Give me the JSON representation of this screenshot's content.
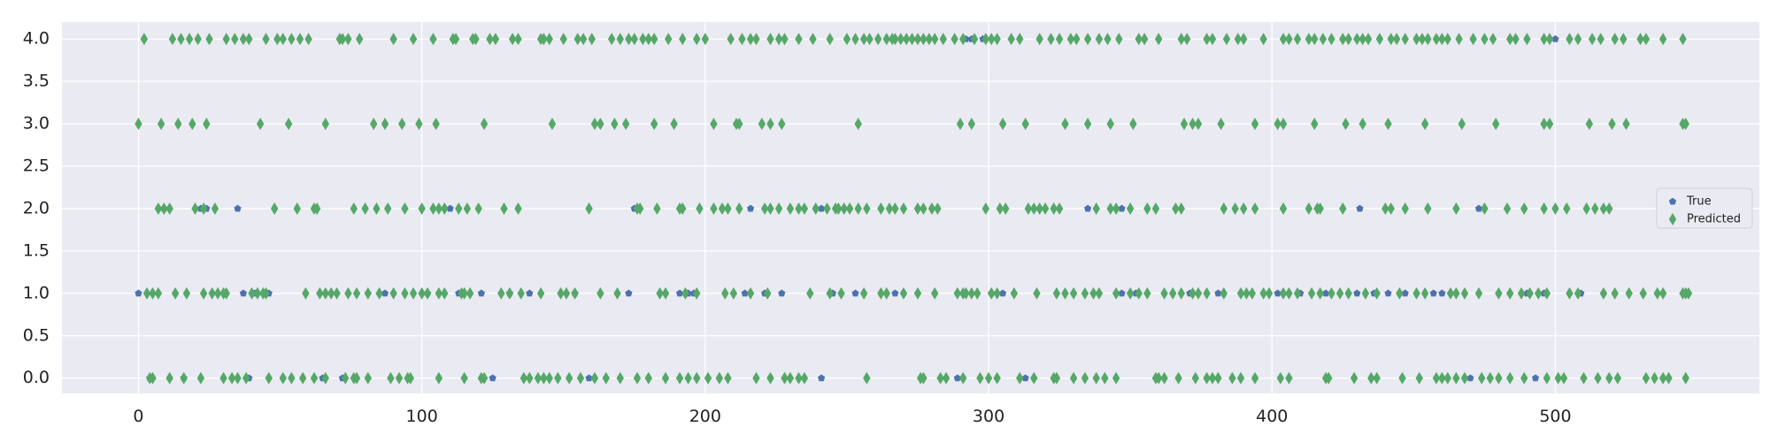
{
  "chart_data": {
    "type": "scatter",
    "title": "",
    "xlabel": "",
    "ylabel": "",
    "xlim": [
      -27,
      572
    ],
    "ylim": [
      -0.18,
      4.2
    ],
    "xticks": [
      0,
      100,
      200,
      300,
      400,
      500
    ],
    "yticks": [
      0.0,
      0.5,
      1.0,
      1.5,
      2.0,
      2.5,
      3.0,
      3.5,
      4.0
    ],
    "xtick_labels": [
      "0",
      "100",
      "200",
      "300",
      "400",
      "500"
    ],
    "ytick_labels": [
      "0.0",
      "0.5",
      "1.0",
      "1.5",
      "2.0",
      "2.5",
      "3.0",
      "3.5",
      "4.0"
    ],
    "grid": true,
    "legend_position": "center-right",
    "background_color": "#eaeaf2",
    "grid_color": "#ffffff",
    "series": [
      {
        "name": "True",
        "marker": "pentagon",
        "color": "#4c72b0",
        "points": [
          [
            0,
            1
          ],
          [
            4,
            0
          ],
          [
            9,
            2
          ],
          [
            16,
            0
          ],
          [
            22,
            2
          ],
          [
            24,
            2
          ],
          [
            35,
            2
          ],
          [
            37,
            1
          ],
          [
            39,
            0
          ],
          [
            41,
            1
          ],
          [
            46,
            1
          ],
          [
            65,
            0
          ],
          [
            72,
            0
          ],
          [
            87,
            1
          ],
          [
            102,
            1
          ],
          [
            110,
            2
          ],
          [
            113,
            1
          ],
          [
            114,
            1
          ],
          [
            121,
            1
          ],
          [
            125,
            0
          ],
          [
            131,
            1
          ],
          [
            138,
            1
          ],
          [
            154,
            1
          ],
          [
            159,
            0
          ],
          [
            173,
            1
          ],
          [
            175,
            2
          ],
          [
            191,
            1
          ],
          [
            194,
            1
          ],
          [
            196,
            1
          ],
          [
            214,
            1
          ],
          [
            216,
            2
          ],
          [
            221,
            1
          ],
          [
            227,
            1
          ],
          [
            241,
            0
          ],
          [
            241,
            2
          ],
          [
            245,
            1
          ],
          [
            253,
            1
          ],
          [
            267,
            1
          ],
          [
            289,
            0
          ],
          [
            292,
            4
          ],
          [
            294,
            4
          ],
          [
            298,
            4
          ],
          [
            301,
            1
          ],
          [
            305,
            1
          ],
          [
            313,
            0
          ],
          [
            335,
            2
          ],
          [
            347,
            1
          ],
          [
            347,
            2
          ],
          [
            352,
            1
          ],
          [
            371,
            1
          ],
          [
            381,
            1
          ],
          [
            402,
            1
          ],
          [
            410,
            1
          ],
          [
            419,
            1
          ],
          [
            430,
            1
          ],
          [
            431,
            2
          ],
          [
            436,
            1
          ],
          [
            441,
            1
          ],
          [
            447,
            1
          ],
          [
            457,
            1
          ],
          [
            460,
            1
          ],
          [
            470,
            0
          ],
          [
            473,
            2
          ],
          [
            490,
            1
          ],
          [
            493,
            0
          ],
          [
            496,
            1
          ],
          [
            500,
            4
          ],
          [
            509,
            1
          ]
        ]
      },
      {
        "name": "Predicted",
        "marker": "diamond",
        "color": "#55a868",
        "levels": [
          {
            "y": 4.0,
            "x": [
              2,
              12,
              15,
              18,
              21,
              25,
              31,
              34,
              37,
              39,
              45,
              49,
              51,
              54,
              57,
              60,
              71,
              72,
              74,
              78,
              90,
              97,
              104,
              111,
              112,
              118,
              119,
              124,
              126,
              132,
              134,
              142,
              143,
              145,
              150,
              155,
              157,
              160,
              167,
              170,
              173,
              175,
              178,
              180,
              182,
              187,
              192,
              197,
              200,
              209,
              213,
              216,
              218,
              223,
              226,
              228,
              233,
              238,
              244,
              250,
              253,
              256,
              258,
              261,
              264,
              266,
              267,
              269,
              271,
              273,
              275,
              277,
              279,
              281,
              284,
              288,
              291,
              295,
              299,
              301,
              303,
              308,
              311,
              318,
              322,
              325,
              329,
              331,
              335,
              339,
              342,
              346,
              353,
              355,
              360,
              368,
              370,
              377,
              379,
              384,
              388,
              390,
              397,
              404,
              406,
              409,
              413,
              415,
              418,
              421,
              425,
              427,
              430,
              432,
              434,
              438,
              442,
              444,
              447,
              451,
              453,
              455,
              458,
              460,
              462,
              466,
              471,
              475,
              478,
              484,
              486,
              490,
              496,
              498,
              505,
              508,
              513,
              516,
              521,
              524,
              530,
              532,
              538,
              545
            ]
          },
          {
            "y": 3.0,
            "x": [
              0,
              8,
              14,
              19,
              24,
              43,
              53,
              66,
              83,
              87,
              93,
              99,
              105,
              122,
              146,
              161,
              163,
              168,
              172,
              182,
              189,
              203,
              211,
              212,
              220,
              223,
              227,
              254,
              290,
              294,
              305,
              313,
              327,
              335,
              343,
              351,
              369,
              372,
              374,
              382,
              394,
              402,
              404,
              415,
              426,
              432,
              441,
              454,
              467,
              479,
              496,
              498,
              512,
              520,
              525,
              545,
              546
            ]
          },
          {
            "y": 2.0,
            "x": [
              7,
              9,
              11,
              20,
              23,
              27,
              48,
              56,
              62,
              63,
              76,
              80,
              84,
              88,
              94,
              100,
              104,
              106,
              108,
              113,
              116,
              120,
              129,
              134,
              159,
              176,
              177,
              183,
              191,
              192,
              198,
              203,
              206,
              208,
              212,
              221,
              223,
              226,
              230,
              233,
              235,
              239,
              243,
              246,
              247,
              249,
              251,
              254,
              257,
              262,
              265,
              267,
              270,
              275,
              277,
              280,
              282,
              299,
              304,
              306,
              314,
              316,
              318,
              320,
              323,
              325,
              338,
              343,
              345,
              350,
              356,
              359,
              366,
              368,
              383,
              387,
              390,
              394,
              404,
              413,
              416,
              417,
              425,
              440,
              442,
              447,
              455,
              465,
              475,
              483,
              489,
              496,
              500,
              504,
              511,
              514,
              517,
              519
            ]
          },
          {
            "y": 1.0,
            "x": [
              3,
              5,
              7,
              13,
              17,
              23,
              26,
              28,
              30,
              31,
              40,
              42,
              44,
              45,
              59,
              64,
              66,
              68,
              70,
              74,
              77,
              81,
              85,
              90,
              94,
              97,
              100,
              102,
              106,
              108,
              114,
              115,
              117,
              128,
              131,
              135,
              142,
              149,
              151,
              154,
              163,
              169,
              184,
              186,
              193,
              197,
              207,
              210,
              216,
              222,
              237,
              244,
              248,
              256,
              262,
              264,
              270,
              275,
              281,
              289,
              291,
              292,
              294,
              296,
              301,
              303,
              309,
              317,
              324,
              327,
              330,
              334,
              337,
              339,
              345,
              350,
              353,
              356,
              362,
              365,
              368,
              372,
              374,
              377,
              383,
              389,
              391,
              393,
              397,
              399,
              404,
              406,
              409,
              414,
              417,
              421,
              424,
              427,
              433,
              437,
              445,
              451,
              454,
              463,
              465,
              468,
              473,
              480,
              484,
              488,
              491,
              494,
              497,
              505,
              508,
              517,
              521,
              526,
              531,
              536,
              538,
              545,
              546,
              547
            ]
          },
          {
            "y": 0.0,
            "x": [
              4,
              5,
              11,
              16,
              22,
              30,
              33,
              35,
              38,
              46,
              51,
              54,
              58,
              62,
              66,
              73,
              76,
              77,
              81,
              89,
              92,
              95,
              96,
              106,
              115,
              121,
              122,
              136,
              138,
              141,
              143,
              145,
              148,
              152,
              156,
              161,
              165,
              170,
              176,
              180,
              186,
              191,
              194,
              197,
              201,
              205,
              208,
              218,
              223,
              228,
              230,
              233,
              235,
              257,
              276,
              277,
              283,
              285,
              291,
              297,
              300,
              303,
              311,
              316,
              323,
              324,
              330,
              334,
              338,
              341,
              345,
              359,
              360,
              362,
              367,
              373,
              377,
              379,
              381,
              386,
              389,
              394,
              403,
              406,
              419,
              420,
              429,
              435,
              437,
              446,
              452,
              458,
              460,
              462,
              465,
              468,
              474,
              477,
              480,
              484,
              489,
              497,
              501,
              503,
              510,
              515,
              519,
              522,
              532,
              535,
              538,
              540,
              546
            ]
          }
        ]
      }
    ]
  }
}
